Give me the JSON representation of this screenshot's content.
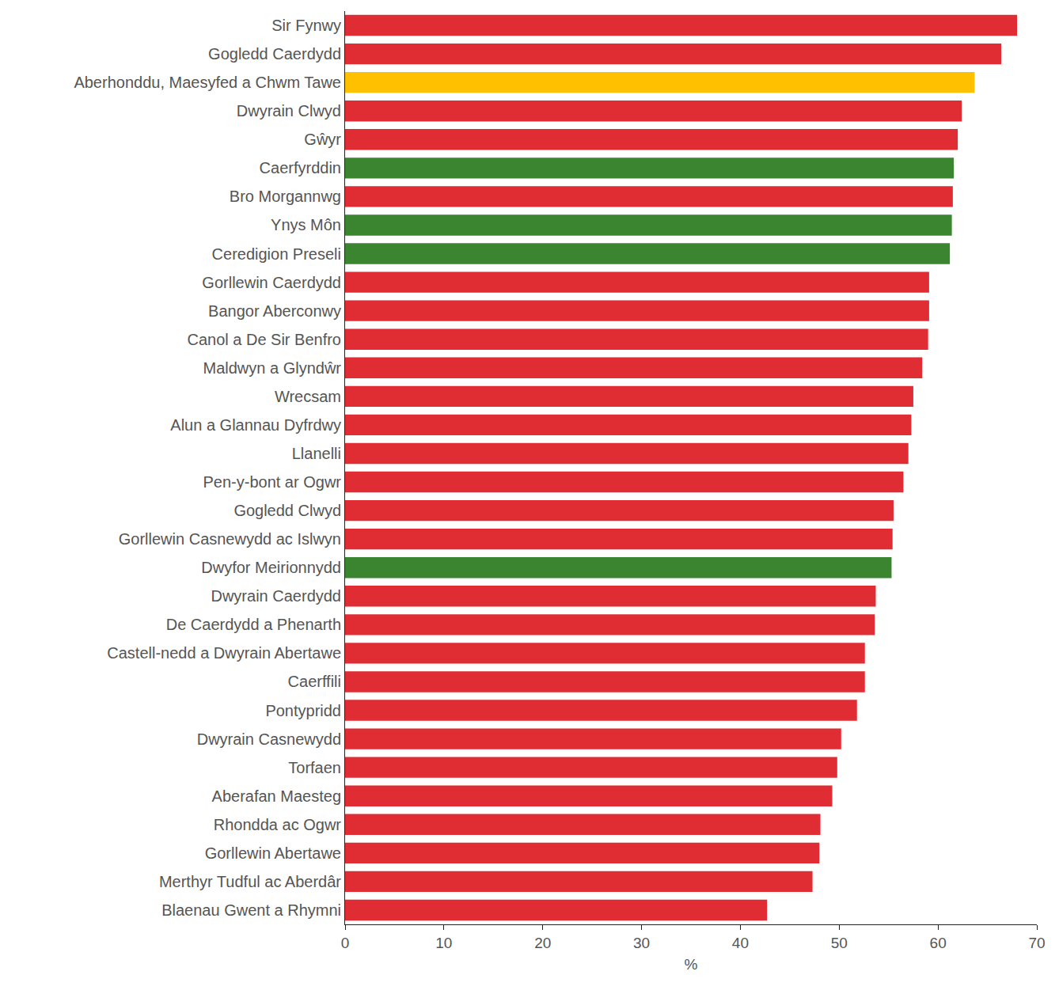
{
  "chart_data": {
    "type": "bar",
    "orientation": "horizontal",
    "x_label": "%",
    "categories": [
      "Sir Fynwy",
      "Gogledd Caerdydd",
      "Aberhonddu, Maesyfed a Chwm Tawe",
      "Dwyrain Clwyd",
      "Gŵyr",
      "Caerfyrddin",
      "Bro Morgannwg",
      "Ynys Môn",
      "Ceredigion Preseli",
      "Gorllewin Caerdydd",
      "Bangor Aberconwy",
      "Canol a De Sir Benfro",
      "Maldwyn a Glyndŵr",
      "Wrecsam",
      "Alun a Glannau Dyfrdwy",
      "Llanelli",
      "Pen-y-bont ar Ogwr",
      "Gogledd Clwyd",
      "Gorllewin Casnewydd ac Islwyn",
      "Dwyfor Meirionnydd",
      "Dwyrain Caerdydd",
      "De Caerdydd a Phenarth",
      "Castell-nedd a Dwyrain Abertawe",
      "Caerffili",
      "Pontypridd",
      "Dwyrain Casnewydd",
      "Torfaen",
      "Aberafan Maesteg",
      "Rhondda ac Ogwr",
      "Gorllewin Abertawe",
      "Merthyr Tudful ac Aberdâr",
      "Blaenau Gwent a Rhymni"
    ],
    "values": [
      68.0,
      66.4,
      63.7,
      62.4,
      62.0,
      61.6,
      61.5,
      61.4,
      61.2,
      59.1,
      59.1,
      59.0,
      58.4,
      57.5,
      57.3,
      57.0,
      56.5,
      55.5,
      55.4,
      55.3,
      53.7,
      53.6,
      52.6,
      52.6,
      51.8,
      50.2,
      49.8,
      49.3,
      48.1,
      48.0,
      47.3,
      42.7
    ],
    "colors": [
      "#e02d33",
      "#e02d33",
      "#ffc000",
      "#e02d33",
      "#e02d33",
      "#3b8530",
      "#e02d33",
      "#3b8530",
      "#3b8530",
      "#e02d33",
      "#e02d33",
      "#e02d33",
      "#e02d33",
      "#e02d33",
      "#e02d33",
      "#e02d33",
      "#e02d33",
      "#e02d33",
      "#e02d33",
      "#3b8530",
      "#e02d33",
      "#e02d33",
      "#e02d33",
      "#e02d33",
      "#e02d33",
      "#e02d33",
      "#e02d33",
      "#e02d33",
      "#e02d33",
      "#e02d33",
      "#e02d33",
      "#e02d33"
    ],
    "xlim": [
      0,
      70
    ],
    "xticks": [
      0,
      10,
      20,
      30,
      40,
      50,
      60,
      70
    ],
    "grid": false
  }
}
